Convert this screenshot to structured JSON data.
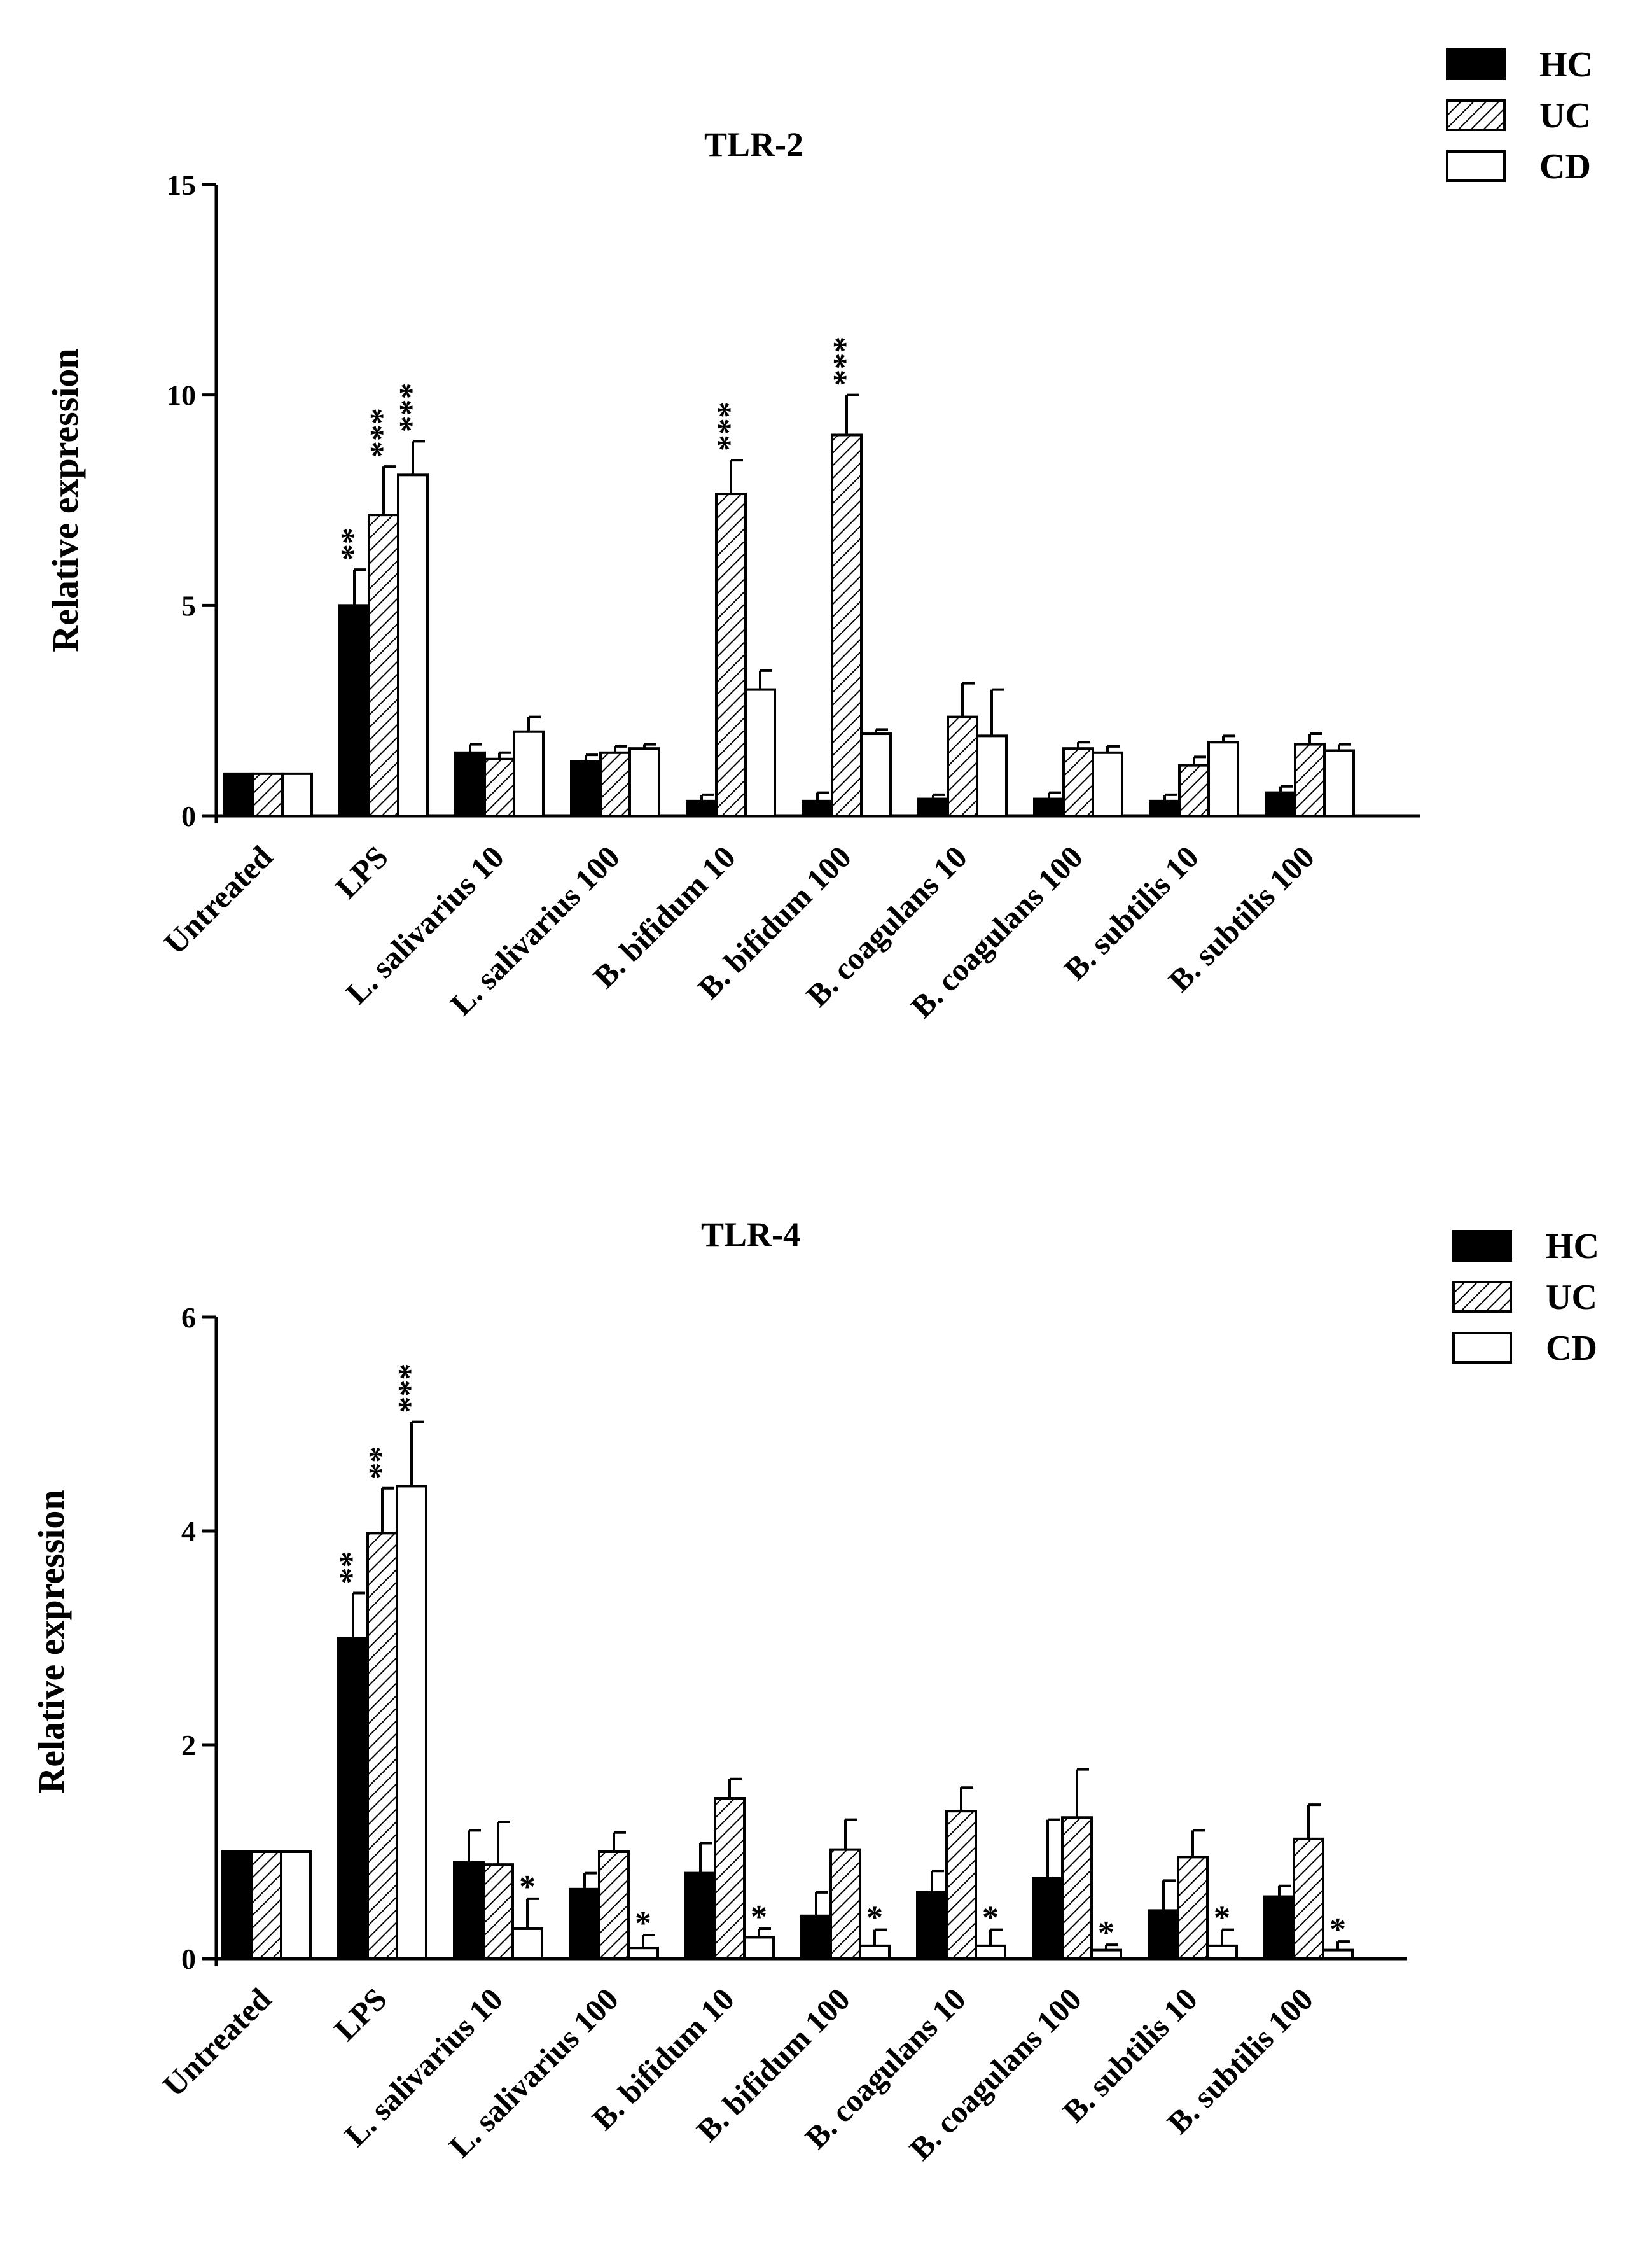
{
  "colors": {
    "hc": "#000000",
    "uc_hatch": "#000000",
    "cd": "#ffffff",
    "axis": "#000000"
  },
  "legend": [
    "HC",
    "UC",
    "CD"
  ],
  "categories": [
    "Untreated",
    "LPS",
    "L. salivarius 10",
    "L. salivarius 100",
    "B. bifidum 10",
    "B. bifidum 100",
    "B. coagulans 10",
    "B. coagulans 100",
    "B. subtilis 10",
    "B. subtilis 100"
  ],
  "chart_data": [
    {
      "type": "bar",
      "title": "TLR-2",
      "xlabel": "",
      "ylabel": "Relative expression",
      "ylim": [
        0,
        15
      ],
      "yticks": [
        0,
        5,
        10,
        15
      ],
      "categories": [
        "Untreated",
        "LPS",
        "L. salivarius 10",
        "L. salivarius 100",
        "B. bifidum 10",
        "B. bifidum 100",
        "B. coagulans 10",
        "B. coagulans 100",
        "B. subtilis 10",
        "B. subtilis 100"
      ],
      "legend_position": "top-right",
      "series": [
        {
          "name": "HC",
          "values": [
            1.0,
            5.0,
            1.5,
            1.3,
            0.35,
            0.35,
            0.4,
            0.4,
            0.35,
            0.55
          ],
          "errors": [
            0.0,
            0.85,
            0.2,
            0.15,
            0.15,
            0.2,
            0.1,
            0.15,
            0.15,
            0.15
          ],
          "significance": [
            "",
            "**",
            "",
            "",
            "",
            "",
            "",
            "",
            "",
            ""
          ]
        },
        {
          "name": "UC",
          "values": [
            1.0,
            7.15,
            1.35,
            1.5,
            7.65,
            9.05,
            2.35,
            1.6,
            1.2,
            1.7
          ],
          "errors": [
            0.0,
            1.15,
            0.15,
            0.15,
            0.8,
            0.95,
            0.8,
            0.15,
            0.2,
            0.25
          ],
          "significance": [
            "",
            "***",
            "",
            "",
            "***",
            "***",
            "",
            "",
            "",
            ""
          ]
        },
        {
          "name": "CD",
          "values": [
            1.0,
            8.1,
            2.0,
            1.6,
            3.0,
            1.95,
            1.9,
            1.5,
            1.75,
            1.55
          ],
          "errors": [
            0.0,
            0.8,
            0.35,
            0.1,
            0.45,
            0.1,
            1.1,
            0.15,
            0.15,
            0.15
          ],
          "significance": [
            "",
            "***",
            "",
            "",
            "",
            "",
            "",
            "",
            "",
            ""
          ]
        }
      ]
    },
    {
      "type": "bar",
      "title": "TLR-4",
      "xlabel": "",
      "ylabel": "Relative expression",
      "ylim": [
        0,
        6
      ],
      "yticks": [
        0,
        2,
        4,
        6
      ],
      "categories": [
        "Untreated",
        "LPS",
        "L. salivarius 10",
        "L. salivarius 100",
        "B. bifidum 10",
        "B. bifidum 100",
        "B. coagulans 10",
        "B. coagulans 100",
        "B. subtilis 10",
        "B. subtilis 100"
      ],
      "legend_position": "top-right",
      "series": [
        {
          "name": "HC",
          "values": [
            1.0,
            3.0,
            0.9,
            0.65,
            0.8,
            0.4,
            0.62,
            0.75,
            0.45,
            0.58
          ],
          "errors": [
            0.0,
            0.42,
            0.3,
            0.15,
            0.28,
            0.22,
            0.2,
            0.55,
            0.28,
            0.1
          ],
          "significance": [
            "",
            "**",
            "",
            "",
            "",
            "",
            "",
            "",
            "",
            ""
          ]
        },
        {
          "name": "UC",
          "values": [
            1.0,
            3.98,
            0.88,
            1.0,
            1.5,
            1.02,
            1.38,
            1.32,
            0.95,
            1.12
          ],
          "errors": [
            0.0,
            0.42,
            0.4,
            0.18,
            0.18,
            0.28,
            0.22,
            0.45,
            0.25,
            0.32
          ],
          "significance": [
            "",
            "**",
            "",
            "",
            "",
            "",
            "",
            "",
            "",
            ""
          ]
        },
        {
          "name": "CD",
          "values": [
            1.0,
            4.42,
            0.28,
            0.1,
            0.2,
            0.12,
            0.12,
            0.08,
            0.12,
            0.08
          ],
          "errors": [
            0.0,
            0.6,
            0.28,
            0.12,
            0.08,
            0.15,
            0.15,
            0.05,
            0.15,
            0.08
          ],
          "significance": [
            "",
            "***",
            "*",
            "*",
            "*",
            "*",
            "*",
            "*",
            "*",
            "*"
          ]
        }
      ]
    }
  ]
}
